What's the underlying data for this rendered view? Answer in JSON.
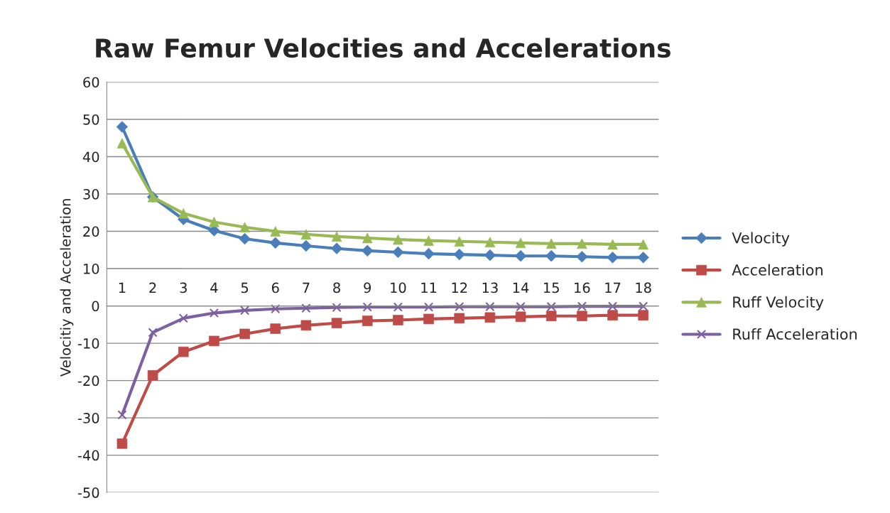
{
  "chart_data": {
    "type": "line",
    "title": "Raw Femur Velocities and Accelerations",
    "ylabel": "Velocitiy and Acceleration",
    "categories": [
      "1",
      "2",
      "3",
      "4",
      "5",
      "6",
      "7",
      "8",
      "9",
      "10",
      "11",
      "12",
      "13",
      "14",
      "15",
      "16",
      "17",
      "18"
    ],
    "series": [
      {
        "name": "Velocity",
        "color": "#4a7ebb",
        "marker": "diamond",
        "values": [
          48,
          29.2,
          23.2,
          20.2,
          18,
          16.9,
          16.1,
          15.4,
          14.8,
          14.4,
          14,
          13.8,
          13.6,
          13.4,
          13.4,
          13.2,
          13,
          13
        ]
      },
      {
        "name": "Acceleration",
        "color": "#be4b48",
        "marker": "square",
        "values": [
          -36.9,
          -18.6,
          -12.3,
          -9.4,
          -7.5,
          -6.1,
          -5.2,
          -4.6,
          -4,
          -3.8,
          -3.5,
          -3.3,
          -3.1,
          -2.9,
          -2.7,
          -2.7,
          -2.5,
          -2.5
        ]
      },
      {
        "name": "Ruff Velocity",
        "color": "#98b954",
        "marker": "triangle",
        "values": [
          43.6,
          29.2,
          24.8,
          22.5,
          21.1,
          20,
          19.2,
          18.6,
          18.2,
          17.8,
          17.5,
          17.3,
          17.1,
          16.9,
          16.7,
          16.7,
          16.5,
          16.5
        ]
      },
      {
        "name": "Ruff Acceleration",
        "color": "#7d60a0",
        "marker": "cross",
        "values": [
          -29.2,
          -7.1,
          -3.3,
          -1.9,
          -1.2,
          -0.8,
          -0.6,
          -0.4,
          -0.3,
          -0.3,
          -0.3,
          -0.2,
          -0.2,
          -0.2,
          -0.2,
          -0.1,
          -0.1,
          -0.1
        ]
      }
    ],
    "ylim": [
      -50,
      60
    ],
    "yticks": [
      -50,
      -40,
      -30,
      -20,
      -10,
      0,
      10,
      20,
      30,
      40,
      50,
      60
    ],
    "grid": "y",
    "legend": "right"
  }
}
